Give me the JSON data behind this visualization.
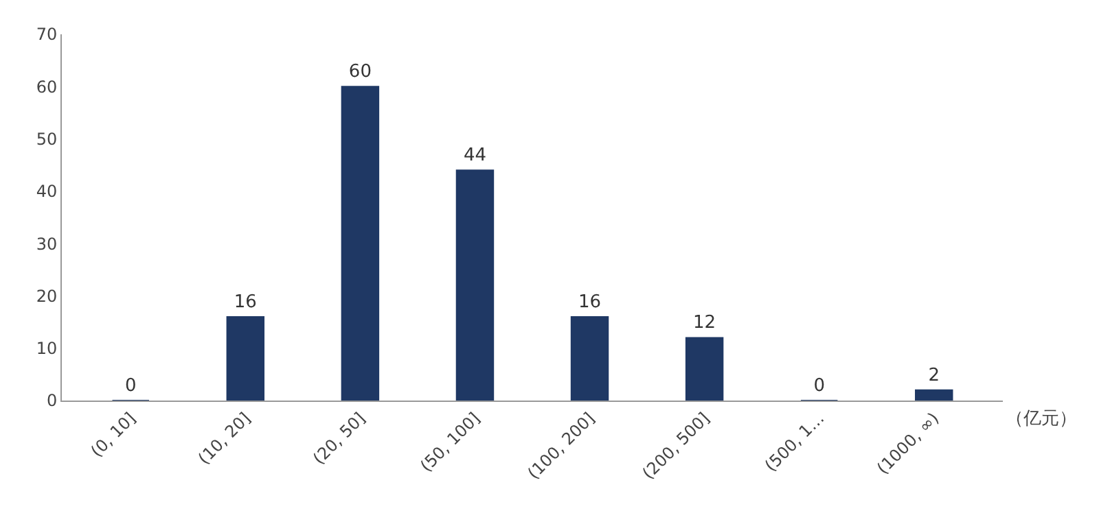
{
  "chart_data": {
    "type": "bar",
    "xlabel": "（亿元）",
    "categories": [
      "(0, 10]",
      "(10, 20]",
      "(20, 50]",
      "(50, 100]",
      "(100, 200]",
      "(200, 500]",
      "(500, 1…",
      "(1000, ∞)"
    ],
    "values": [
      0,
      16,
      60,
      44,
      16,
      12,
      0,
      2
    ],
    "color": "#1f3864",
    "ylim": [
      0,
      70
    ],
    "yticks": [
      0,
      10,
      20,
      30,
      40,
      50,
      60,
      70
    ],
    "data_labels": true
  }
}
